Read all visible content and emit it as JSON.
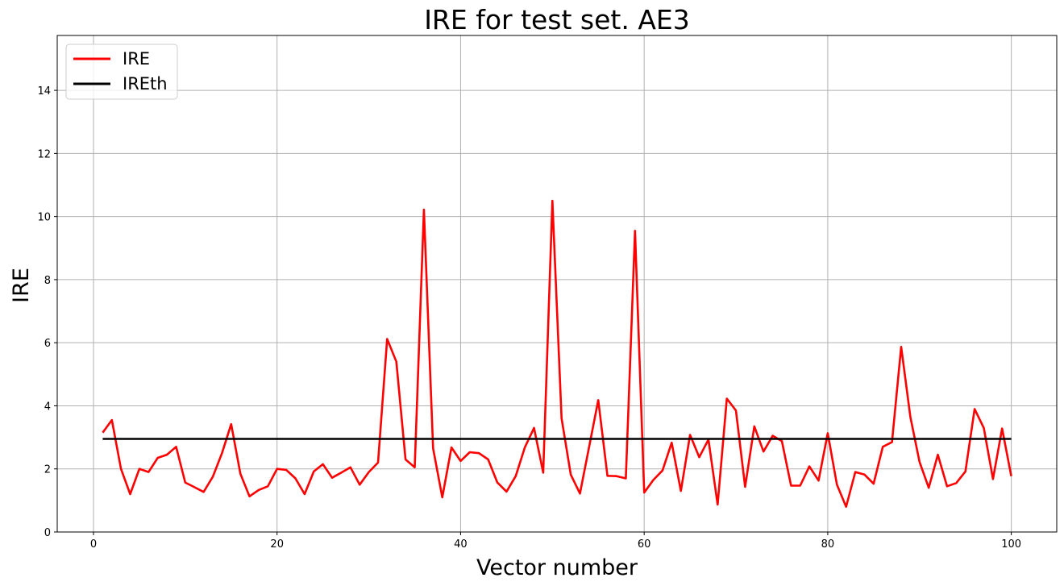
{
  "chart_data": {
    "type": "line",
    "title": "IRE for test set. AE3",
    "xlabel": "Vector number",
    "ylabel": "IRE",
    "xlim": [
      -3.95,
      104.95
    ],
    "ylim": [
      0,
      15.74
    ],
    "xticks": [
      0,
      20,
      40,
      60,
      80,
      100
    ],
    "yticks": [
      0,
      2,
      4,
      6,
      8,
      10,
      12,
      14
    ],
    "grid": true,
    "legend_position": "top-left",
    "series": [
      {
        "name": "IRE",
        "color": "#ff0000",
        "x": [
          1,
          2,
          3,
          4,
          5,
          6,
          7,
          8,
          9,
          10,
          11,
          12,
          13,
          14,
          15,
          16,
          17,
          18,
          19,
          20,
          21,
          22,
          23,
          24,
          25,
          26,
          27,
          28,
          29,
          30,
          31,
          32,
          33,
          34,
          35,
          36,
          37,
          38,
          39,
          40,
          41,
          42,
          43,
          44,
          45,
          46,
          47,
          48,
          49,
          50,
          51,
          52,
          53,
          54,
          55,
          56,
          57,
          58,
          59,
          60,
          61,
          62,
          63,
          64,
          65,
          66,
          67,
          68,
          69,
          70,
          71,
          72,
          73,
          74,
          75,
          76,
          77,
          78,
          79,
          80,
          81,
          82,
          83,
          84,
          85,
          86,
          87,
          88,
          89,
          90,
          91,
          92,
          93,
          94,
          95,
          96,
          97,
          98,
          99,
          100
        ],
        "values": [
          3.15,
          3.55,
          2.0,
          1.2,
          2.0,
          1.9,
          2.35,
          2.45,
          2.7,
          1.57,
          1.42,
          1.27,
          1.75,
          2.5,
          3.42,
          1.85,
          1.13,
          1.33,
          1.45,
          2.0,
          1.97,
          1.7,
          1.2,
          1.92,
          2.15,
          1.72,
          1.88,
          2.05,
          1.5,
          1.9,
          2.2,
          6.12,
          5.4,
          2.3,
          2.05,
          10.22,
          2.65,
          1.1,
          2.68,
          2.25,
          2.53,
          2.5,
          2.3,
          1.57,
          1.28,
          1.77,
          2.68,
          3.3,
          1.88,
          10.5,
          3.6,
          1.82,
          1.22,
          2.7,
          4.18,
          1.78,
          1.77,
          1.7,
          9.55,
          1.25,
          1.65,
          1.95,
          2.83,
          1.3,
          3.08,
          2.37,
          2.93,
          0.87,
          4.23,
          3.85,
          1.43,
          3.35,
          2.55,
          3.05,
          2.88,
          1.47,
          1.47,
          2.08,
          1.63,
          3.13,
          1.5,
          0.8,
          1.9,
          1.82,
          1.53,
          2.7,
          2.85,
          5.87,
          3.65,
          2.22,
          1.4,
          2.45,
          1.45,
          1.55,
          1.92,
          3.9,
          3.3,
          1.68,
          3.28,
          1.77
        ]
      },
      {
        "name": "IREth",
        "color": "#000000",
        "x": [
          1,
          100
        ],
        "values": [
          2.95,
          2.95
        ]
      }
    ]
  }
}
